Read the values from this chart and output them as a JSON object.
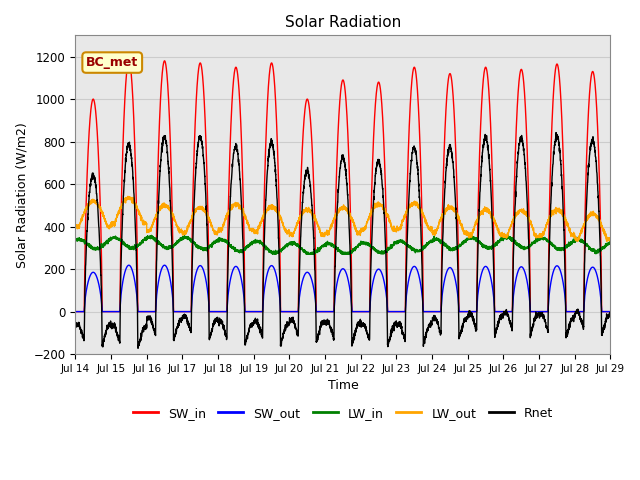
{
  "title": "Solar Radiation",
  "ylabel": "Solar Radiation (W/m2)",
  "xlabel": "Time",
  "ylim": [
    -200,
    1300
  ],
  "yticks": [
    -200,
    0,
    200,
    400,
    600,
    800,
    1000,
    1200
  ],
  "legend_entries": [
    "SW_in",
    "SW_out",
    "LW_in",
    "LW_out",
    "Rnet"
  ],
  "line_colors": [
    "red",
    "blue",
    "green",
    "orange",
    "black"
  ],
  "annotation_text": "BC_met",
  "annotation_bg": "#ffffcc",
  "annotation_border": "#cc8800",
  "annotation_text_color": "#990000",
  "start_day": 14,
  "end_day": 29,
  "n_days": 15,
  "grid_color": "#cccccc",
  "plot_bg": "#e8e8e8",
  "fig_bg": "#ffffff"
}
